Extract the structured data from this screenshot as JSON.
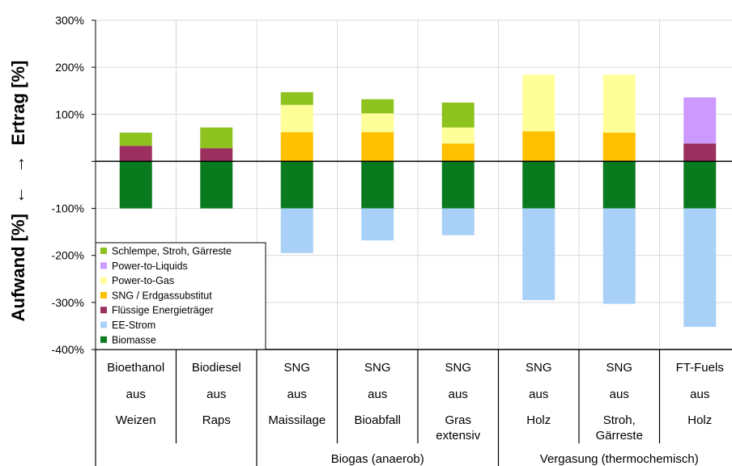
{
  "chart_data": {
    "type": "bar",
    "stacked": true,
    "ylabel_positive": "Ertrag [%]",
    "ylabel_negative": "Aufwand [%]",
    "ylabel_pos_arrow": "→",
    "ylabel_neg_arrow": "←",
    "ylim": [
      -400,
      300
    ],
    "yticks": [
      "-400%",
      "-300%",
      "-200%",
      "-100%",
      "",
      "100%",
      "200%",
      "300%"
    ],
    "ytick_values": [
      -400,
      -300,
      -200,
      -100,
      0,
      100,
      200,
      300
    ],
    "grid": true,
    "legend_position": "lower-left",
    "categories": [
      {
        "line1": "Bioethanol",
        "line2": "aus",
        "line3": "Weizen",
        "line4": ""
      },
      {
        "line1": "Biodiesel",
        "line2": "aus",
        "line3": "Raps",
        "line4": ""
      },
      {
        "line1": "SNG",
        "line2": "aus",
        "line3": "Maissilage",
        "line4": ""
      },
      {
        "line1": "SNG",
        "line2": "aus",
        "line3": "Bioabfall",
        "line4": ""
      },
      {
        "line1": "SNG",
        "line2": "aus",
        "line3": "Gras",
        "line4": "extensiv"
      },
      {
        "line1": "SNG",
        "line2": "aus",
        "line3": "Holz",
        "line4": ""
      },
      {
        "line1": "SNG",
        "line2": "aus",
        "line3": "Stroh,",
        "line4": "Gärreste"
      },
      {
        "line1": "FT-Fuels",
        "line2": "aus",
        "line3": "Holz",
        "line4": ""
      }
    ],
    "groups": [
      {
        "label": "Biogas (anaerob)",
        "from": 2,
        "to": 4
      },
      {
        "label": "Vergasung (thermochemisch)",
        "from": 5,
        "to": 7
      }
    ],
    "series": [
      {
        "name": "Biomasse",
        "color": "#0a7a1e",
        "values": [
          -100,
          -100,
          -100,
          -100,
          -100,
          -100,
          -100,
          -100
        ]
      },
      {
        "name": "EE-Strom",
        "color": "#a9d1f7",
        "values": [
          0,
          0,
          -95,
          -68,
          -57,
          -195,
          -203,
          -252
        ]
      },
      {
        "name": "Flüssige Energieträger",
        "color": "#9b2f5e",
        "values": [
          33,
          28,
          0,
          0,
          0,
          0,
          0,
          38
        ]
      },
      {
        "name": "SNG / Erdgassubstitut",
        "color": "#ffc000",
        "values": [
          0,
          0,
          62,
          62,
          38,
          64,
          61,
          0
        ]
      },
      {
        "name": "Power-to-Gas",
        "color": "#ffff99",
        "values": [
          0,
          0,
          58,
          40,
          34,
          120,
          123,
          0
        ]
      },
      {
        "name": "Power-to-Liquids",
        "color": "#cc99ff",
        "values": [
          0,
          0,
          0,
          0,
          0,
          0,
          0,
          98
        ]
      },
      {
        "name": "Schlempe, Stroh, Gärreste",
        "color": "#8dc21f",
        "values": [
          28,
          44,
          27,
          30,
          53,
          0,
          0,
          0
        ]
      }
    ],
    "legend_order": [
      "Schlempe, Stroh, Gärreste",
      "Power-to-Liquids",
      "Power-to-Gas",
      "SNG / Erdgassubstitut",
      "Flüssige Energieträger",
      "EE-Strom",
      "Biomasse"
    ]
  }
}
